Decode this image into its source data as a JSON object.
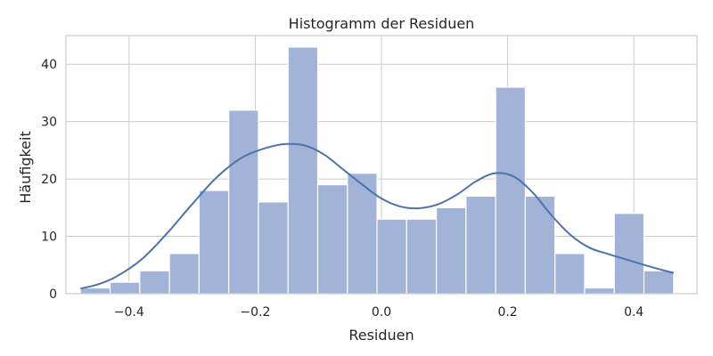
{
  "chart_data": {
    "type": "bar",
    "title": "Histogramm der Residuen",
    "xlabel": "Residuen",
    "ylabel": "Häufigkeit",
    "xlim": [
      -0.5,
      0.5
    ],
    "ylim": [
      0,
      45
    ],
    "xticks": [
      -0.4,
      -0.2,
      0.0,
      0.2,
      0.4
    ],
    "xtick_labels": [
      "−0.4",
      "−0.2",
      "0.0",
      "0.2",
      "0.4"
    ],
    "yticks": [
      0,
      10,
      20,
      30,
      40
    ],
    "ytick_labels": [
      "0",
      "10",
      "20",
      "30",
      "40"
    ],
    "grid": true,
    "bins": [
      {
        "x0": -0.477,
        "x1": -0.43,
        "count": 1
      },
      {
        "x0": -0.43,
        "x1": -0.383,
        "count": 2
      },
      {
        "x0": -0.383,
        "x1": -0.336,
        "count": 4
      },
      {
        "x0": -0.336,
        "x1": -0.289,
        "count": 7
      },
      {
        "x0": -0.289,
        "x1": -0.242,
        "count": 18
      },
      {
        "x0": -0.242,
        "x1": -0.195,
        "count": 32
      },
      {
        "x0": -0.195,
        "x1": -0.148,
        "count": 16
      },
      {
        "x0": -0.148,
        "x1": -0.101,
        "count": 43
      },
      {
        "x0": -0.101,
        "x1": -0.054,
        "count": 19
      },
      {
        "x0": -0.054,
        "x1": -0.007,
        "count": 21
      },
      {
        "x0": -0.007,
        "x1": 0.04,
        "count": 13
      },
      {
        "x0": 0.04,
        "x1": 0.087,
        "count": 13
      },
      {
        "x0": 0.087,
        "x1": 0.134,
        "count": 15
      },
      {
        "x0": 0.134,
        "x1": 0.181,
        "count": 17
      },
      {
        "x0": 0.181,
        "x1": 0.228,
        "count": 36
      },
      {
        "x0": 0.228,
        "x1": 0.275,
        "count": 17
      },
      {
        "x0": 0.275,
        "x1": 0.322,
        "count": 7
      },
      {
        "x0": 0.322,
        "x1": 0.369,
        "count": 1
      },
      {
        "x0": 0.369,
        "x1": 0.416,
        "count": 14
      },
      {
        "x0": 0.416,
        "x1": 0.463,
        "count": 4
      }
    ],
    "kde": {
      "x": [
        -0.477,
        -0.45,
        -0.42,
        -0.38,
        -0.34,
        -0.3,
        -0.26,
        -0.22,
        -0.18,
        -0.15,
        -0.12,
        -0.09,
        -0.06,
        -0.03,
        0.0,
        0.03,
        0.06,
        0.09,
        0.12,
        0.15,
        0.18,
        0.21,
        0.24,
        0.27,
        0.3,
        0.33,
        0.36,
        0.39,
        0.42,
        0.463
      ],
      "y": [
        0.9,
        1.6,
        3.0,
        6.0,
        10.5,
        15.6,
        20.4,
        23.8,
        25.5,
        26.1,
        25.8,
        24.2,
        21.6,
        19.0,
        16.6,
        15.2,
        14.9,
        15.6,
        17.3,
        19.6,
        21.0,
        20.4,
        17.6,
        13.6,
        10.2,
        8.0,
        6.9,
        5.9,
        4.9,
        3.6
      ]
    },
    "colors": {
      "bar_fill": "#a1b3d6",
      "bar_edge": "#ffffff",
      "kde_line": "#4c72b0",
      "grid": "#cccccc",
      "spine": "#cccccc",
      "text": "#262626"
    }
  }
}
